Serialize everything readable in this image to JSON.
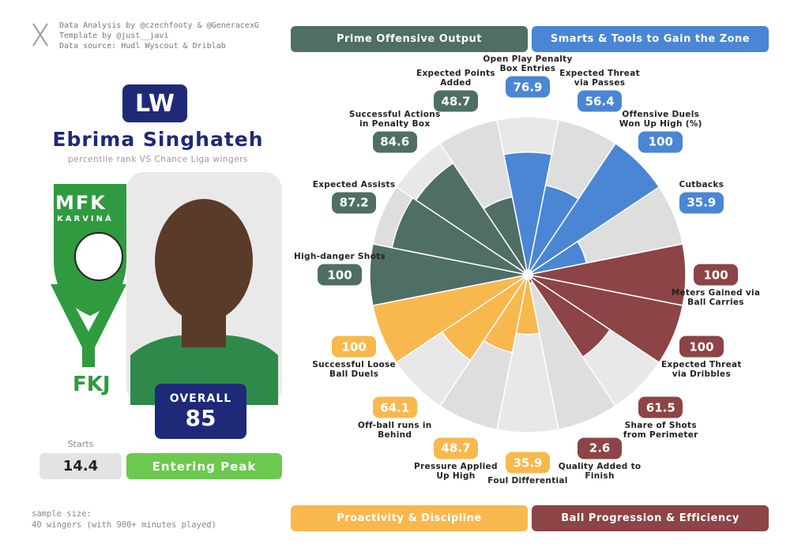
{
  "header": {
    "credits": [
      "Data Analysis by @czechfooty & @GeneracexG",
      "Template by @just__javi",
      "Data source: Hudl Wyscout & Driblab"
    ]
  },
  "player": {
    "position": "LW",
    "name": "Ebrima Singhateh",
    "subtitle": "percentile rank VS Chance Liga wingers",
    "overall_label": "OVERALL",
    "overall": 85,
    "starts_label": "Starts",
    "starts": 14.4,
    "status": "Entering Peak"
  },
  "logo": {
    "top": "MFK",
    "sub": "KARVINÁ",
    "bottom": "FKJ"
  },
  "footer": {
    "sample": [
      "sample size:",
      "40 wingers (with 900+ minutes played)"
    ]
  },
  "chart_data": {
    "type": "pizza",
    "ylim": [
      0,
      100
    ],
    "series": [
      {
        "name": "Smarts & Tools to Gain the Zone",
        "color": "#4a86d4",
        "categories": [
          "Open Play Penalty Box Entries",
          "Expected Threat via Passes",
          "Offensive Duels Won Up High (%)",
          "Cutbacks"
        ],
        "values": [
          76.9,
          56.4,
          100,
          35.9
        ]
      },
      {
        "name": "Ball Progression & Efficiency",
        "color": "#8c4446",
        "categories": [
          "Meters Gained via Ball Carries",
          "Expected Threat via Dribbles",
          "Share of Shots from Perimeter",
          "Quality Added to Finish"
        ],
        "values": [
          100,
          100,
          61.5,
          2.6
        ]
      },
      {
        "name": "Proactivity & Discipline",
        "color": "#f8b84e",
        "categories": [
          "Foul Differential",
          "Pressure Applied Up High",
          "Off-ball runs in Behind",
          "Successful Loose Ball Duels"
        ],
        "values": [
          35.9,
          48.7,
          64.1,
          100
        ]
      },
      {
        "name": "Prime Offensive Output",
        "color": "#4f6e66",
        "categories": [
          "High-danger Shots",
          "Expected Assists",
          "Successful Actions in Penalty Box",
          "Expected Points Added"
        ],
        "values": [
          100,
          87.2,
          84.6,
          48.7
        ]
      }
    ]
  }
}
